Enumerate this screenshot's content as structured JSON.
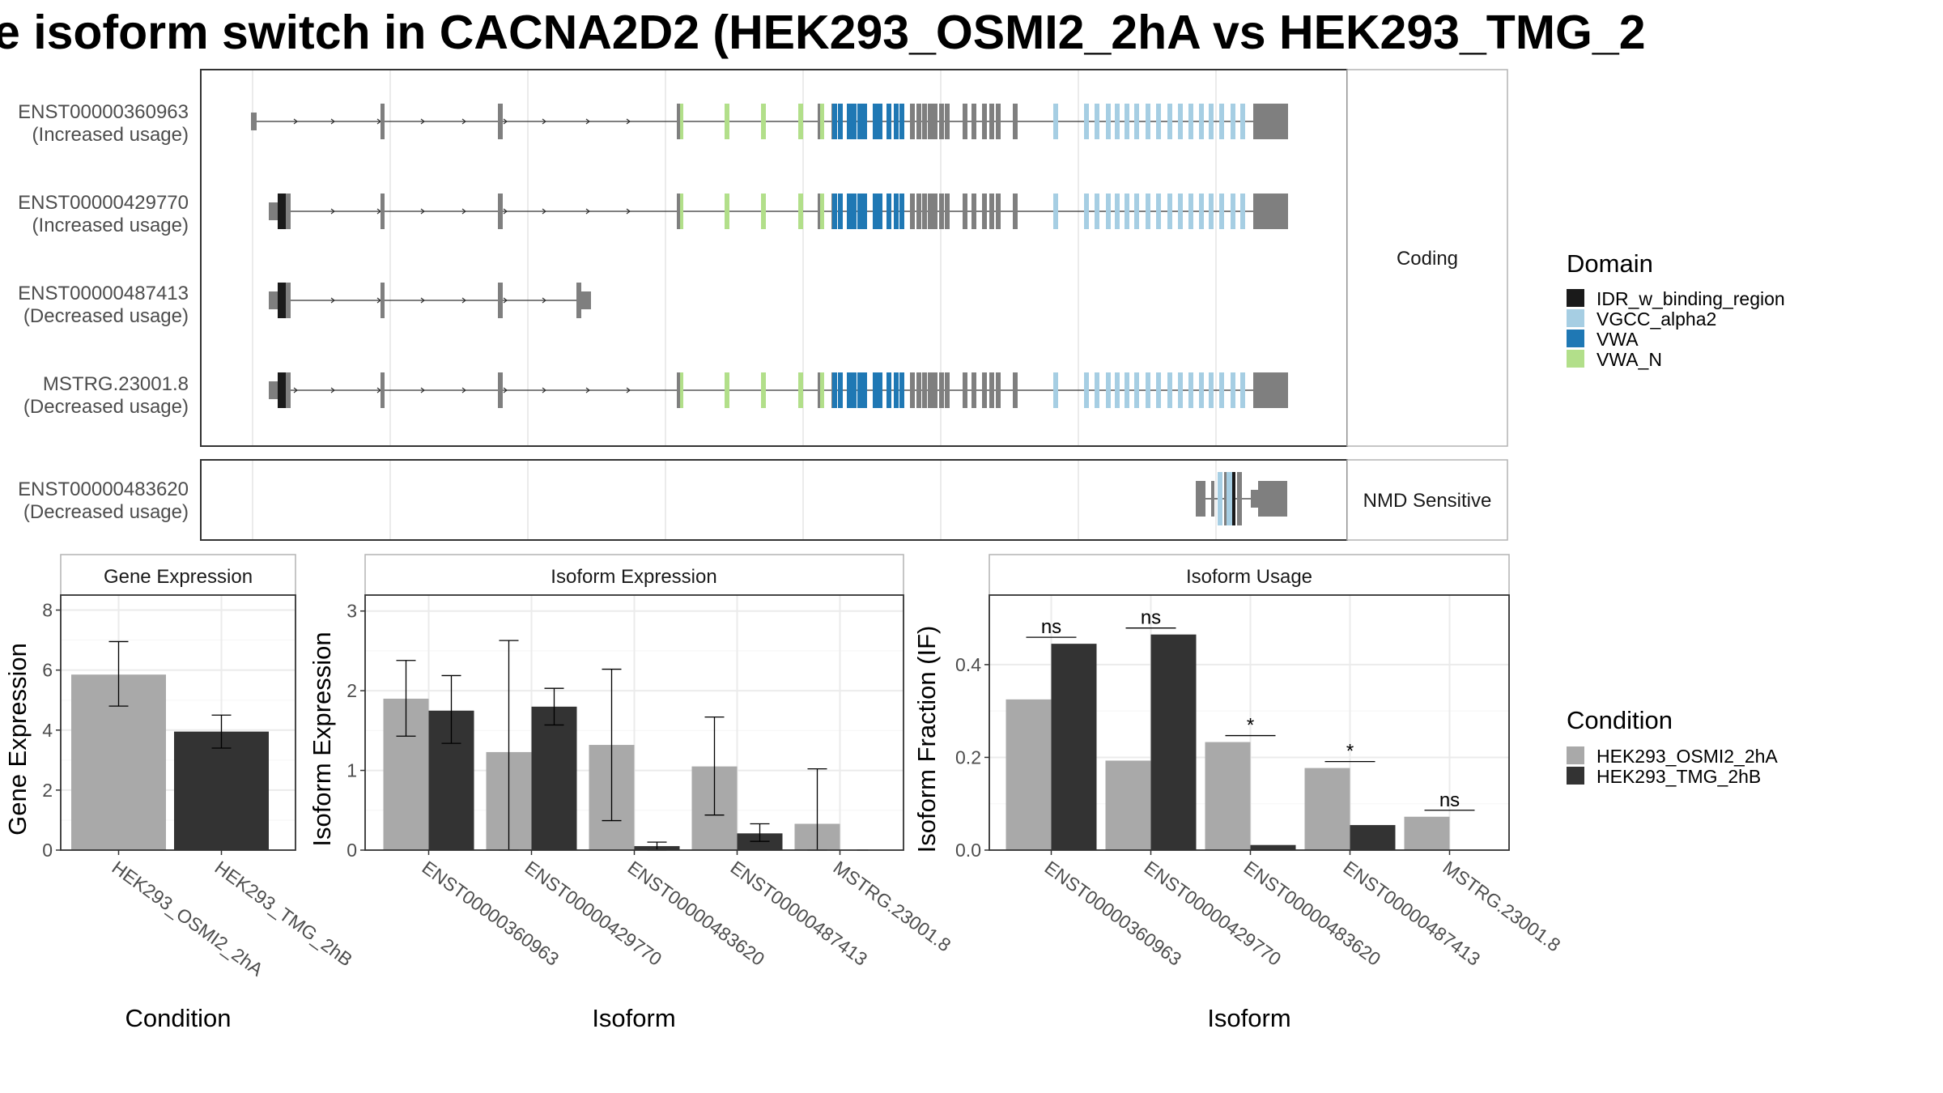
{
  "title": "e isoform switch in CACNA2D2 (HEK293_OSMI2_2hA vs HEK293_TMG_2",
  "colors": {
    "IDR_w_binding_region": "#1a1a1a",
    "VGCC_alpha2": "#a6cee3",
    "VWA": "#1f78b4",
    "VWA_N": "#b2df8a",
    "exon": "#7f7f7f",
    "HEK293_OSMI2_2hA": "#a9a9a9",
    "HEK293_TMG_2hB": "#333333"
  },
  "structure": {
    "coding_panel_label": "Coding",
    "nmd_panel_label": "NMD Sensitive",
    "transcripts": [
      {
        "id": "ENST00000360963",
        "usage": "(Increased usage)",
        "panel": "coding"
      },
      {
        "id": "ENST00000429770",
        "usage": "(Increased usage)",
        "panel": "coding"
      },
      {
        "id": "ENST00000487413",
        "usage": "(Decreased usage)",
        "panel": "coding"
      },
      {
        "id": "MSTRG.23001.8",
        "usage": "(Decreased usage)",
        "panel": "coding"
      },
      {
        "id": "ENST00000483620",
        "usage": "(Decreased usage)",
        "panel": "nmd"
      }
    ]
  },
  "legend_domain": {
    "title": "Domain",
    "items": [
      "IDR_w_binding_region",
      "VGCC_alpha2",
      "VWA",
      "VWA_N"
    ]
  },
  "legend_condition": {
    "title": "Condition",
    "items": [
      "HEK293_OSMI2_2hA",
      "HEK293_TMG_2hB"
    ]
  },
  "chart_data": [
    {
      "type": "bar",
      "title": "Gene Expression",
      "xlabel": "Condition",
      "ylabel": "Gene Expression",
      "ylim": [
        0,
        8.5
      ],
      "yticks": [
        0,
        2,
        4,
        6,
        8
      ],
      "categories": [
        "HEK293_OSMI2_2hA",
        "HEK293_TMG_2hB"
      ],
      "values": [
        5.85,
        3.95
      ],
      "errors": [
        [
          4.8,
          6.95
        ],
        [
          3.4,
          4.5
        ]
      ]
    },
    {
      "type": "bar",
      "title": "Isoform Expression",
      "xlabel": "Isoform",
      "ylabel": "Isoform Expression",
      "ylim": [
        0,
        3.2
      ],
      "yticks": [
        0,
        1,
        2,
        3
      ],
      "categories": [
        "ENST00000360963",
        "ENST00000429770",
        "ENST00000483620",
        "ENST00000487413",
        "MSTRG.23001.8"
      ],
      "series": [
        {
          "name": "HEK293_OSMI2_2hA",
          "values": [
            1.9,
            1.23,
            1.32,
            1.05,
            0.33
          ],
          "errors": [
            [
              1.43,
              2.38
            ],
            [
              0,
              2.63
            ],
            [
              0.37,
              2.27
            ],
            [
              0.44,
              1.67
            ],
            [
              0,
              1.02
            ]
          ]
        },
        {
          "name": "HEK293_TMG_2hB",
          "values": [
            1.75,
            1.8,
            0.05,
            0.21,
            0.0
          ],
          "errors": [
            [
              1.34,
              2.19
            ],
            [
              1.57,
              2.03
            ],
            [
              0,
              0.1
            ],
            [
              0.11,
              0.33
            ],
            [
              0,
              0
            ]
          ]
        }
      ]
    },
    {
      "type": "bar",
      "title": "Isoform Usage",
      "xlabel": "Isoform",
      "ylabel": "Isoform Fraction (IF)",
      "ylim": [
        0,
        0.55
      ],
      "yticks": [
        0.0,
        0.2,
        0.4
      ],
      "yticklabels": [
        "0.0",
        "0.2",
        "0.4"
      ],
      "categories": [
        "ENST00000360963",
        "ENST00000429770",
        "ENST00000483620",
        "ENST00000487413",
        "MSTRG.23001.8"
      ],
      "series": [
        {
          "name": "HEK293_OSMI2_2hA",
          "values": [
            0.325,
            0.193,
            0.233,
            0.177,
            0.072
          ]
        },
        {
          "name": "HEK293_TMG_2hB",
          "values": [
            0.445,
            0.465,
            0.011,
            0.054,
            0.0
          ]
        }
      ],
      "significance": [
        "ns",
        "ns",
        "*",
        "*",
        "ns"
      ]
    }
  ]
}
